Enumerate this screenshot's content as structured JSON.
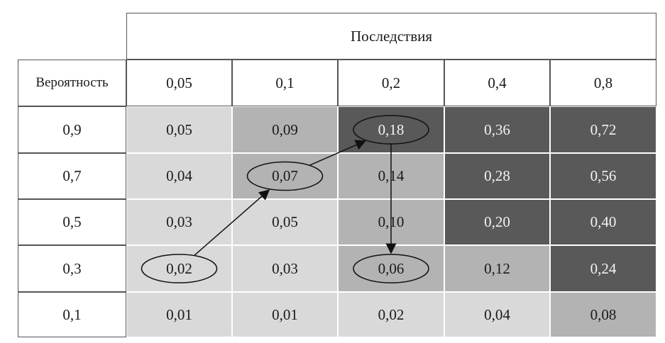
{
  "header": {
    "consequences_label": "Последствия",
    "probability_label": "Вероятность"
  },
  "consequences": [
    "0,05",
    "0,1",
    "0,2",
    "0,4",
    "0,8"
  ],
  "probabilities": [
    "0,9",
    "0,7",
    "0,5",
    "0,3",
    "0,1"
  ],
  "cells": [
    [
      "0,05",
      "0,09",
      "0,18",
      "0,36",
      "0,72"
    ],
    [
      "0,04",
      "0,07",
      "0,14",
      "0,28",
      "0,56"
    ],
    [
      "0,03",
      "0,05",
      "0,10",
      "0,20",
      "0,40"
    ],
    [
      "0,02",
      "0,03",
      "0,06",
      "0,12",
      "0,24"
    ],
    [
      "0,01",
      "0,01",
      "0,02",
      "0,04",
      "0,08"
    ]
  ],
  "shade_levels": [
    [
      1,
      2,
      3,
      3,
      3
    ],
    [
      1,
      2,
      2,
      3,
      3
    ],
    [
      1,
      1,
      2,
      3,
      3
    ],
    [
      1,
      1,
      2,
      2,
      3
    ],
    [
      1,
      1,
      1,
      1,
      2
    ]
  ],
  "shade_colors": {
    "1": "#d9d9d9",
    "2": "#b3b3b3",
    "3": "#595959"
  },
  "circled_cells": [
    [
      3,
      0
    ],
    [
      1,
      1
    ],
    [
      0,
      2
    ],
    [
      3,
      2
    ]
  ],
  "arrow_path": [
    [
      3,
      0
    ],
    [
      1,
      1
    ],
    [
      0,
      2
    ],
    [
      3,
      2
    ]
  ]
}
